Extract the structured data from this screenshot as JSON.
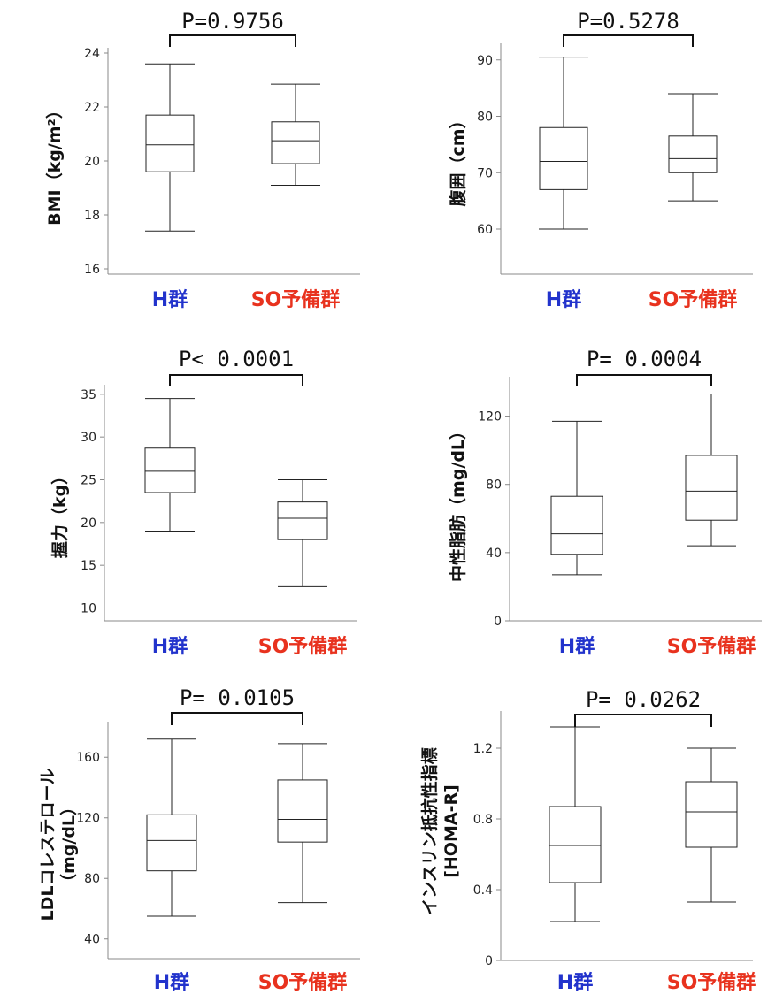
{
  "colors": {
    "group1": "#2233cc",
    "group2": "#e8321e",
    "line": "#222222",
    "axis": "#888888"
  },
  "chart_data": [
    {
      "type": "box",
      "ylabel": "BMI（kg/m²）",
      "categories": [
        "H群",
        "SO予備群"
      ],
      "p_value": "P=0.9756",
      "yticks": [
        16,
        18,
        20,
        22,
        24
      ],
      "ylim": [
        16,
        24
      ],
      "boxes": [
        {
          "min": 17.4,
          "q1": 19.6,
          "median": 20.6,
          "q3": 21.7,
          "max": 23.6
        },
        {
          "min": 19.1,
          "q1": 19.9,
          "median": 20.75,
          "q3": 21.45,
          "max": 22.85
        }
      ]
    },
    {
      "type": "box",
      "ylabel": "腹囲（cm）",
      "categories": [
        "H群",
        "SO予備群"
      ],
      "p_value": "P=0.5278",
      "yticks": [
        60,
        70,
        80,
        90
      ],
      "ylim": [
        52,
        92
      ],
      "boxes": [
        {
          "min": 60,
          "q1": 67,
          "median": 72,
          "q3": 78,
          "max": 90.5
        },
        {
          "min": 65,
          "q1": 70,
          "median": 72.5,
          "q3": 76.5,
          "max": 84
        }
      ]
    },
    {
      "type": "box",
      "ylabel": "握力（kg）",
      "categories": [
        "H群",
        "SO予備群"
      ],
      "p_value": "P< 0.0001",
      "yticks": [
        10,
        15,
        20,
        25,
        30,
        35
      ],
      "ylim": [
        8.5,
        35.5
      ],
      "boxes": [
        {
          "min": 19,
          "q1": 23.5,
          "median": 26,
          "q3": 28.7,
          "max": 34.5
        },
        {
          "min": 12.5,
          "q1": 18,
          "median": 20.5,
          "q3": 22.4,
          "max": 25
        }
      ]
    },
    {
      "type": "box",
      "ylabel": "中性脂肪（mg/dL）",
      "categories": [
        "H群",
        "SO予備群"
      ],
      "p_value": "P= 0.0004",
      "yticks": [
        0,
        40,
        80,
        120
      ],
      "ylim": [
        0,
        140
      ],
      "boxes": [
        {
          "min": 27,
          "q1": 39,
          "median": 51,
          "q3": 73,
          "max": 117
        },
        {
          "min": 44,
          "q1": 59,
          "median": 76,
          "q3": 97,
          "max": 133
        }
      ]
    },
    {
      "type": "box",
      "ylabel": "LDLコレステロール（mg/dL）",
      "categories": [
        "H群",
        "SO予備群"
      ],
      "p_value": "P= 0.0105",
      "yticks": [
        40,
        80,
        120,
        160
      ],
      "ylim": [
        27,
        180
      ],
      "boxes": [
        {
          "min": 55,
          "q1": 85,
          "median": 105,
          "q3": 122,
          "max": 172
        },
        {
          "min": 64,
          "q1": 104,
          "median": 119,
          "q3": 145,
          "max": 169
        }
      ]
    },
    {
      "type": "box",
      "ylabel": "インスリン抵抗性指標 [HOMA-R]",
      "categories": [
        "H群",
        "SO予備群"
      ],
      "p_value": "P= 0.0262",
      "yticks": [
        "0",
        "0.4",
        "0.8",
        "1.2"
      ],
      "ylim": [
        0,
        1.38
      ],
      "boxes": [
        {
          "min": 0.22,
          "q1": 0.44,
          "median": 0.65,
          "q3": 0.87,
          "max": 1.32
        },
        {
          "min": 0.33,
          "q1": 0.64,
          "median": 0.84,
          "q3": 1.01,
          "max": 1.2
        }
      ]
    }
  ]
}
